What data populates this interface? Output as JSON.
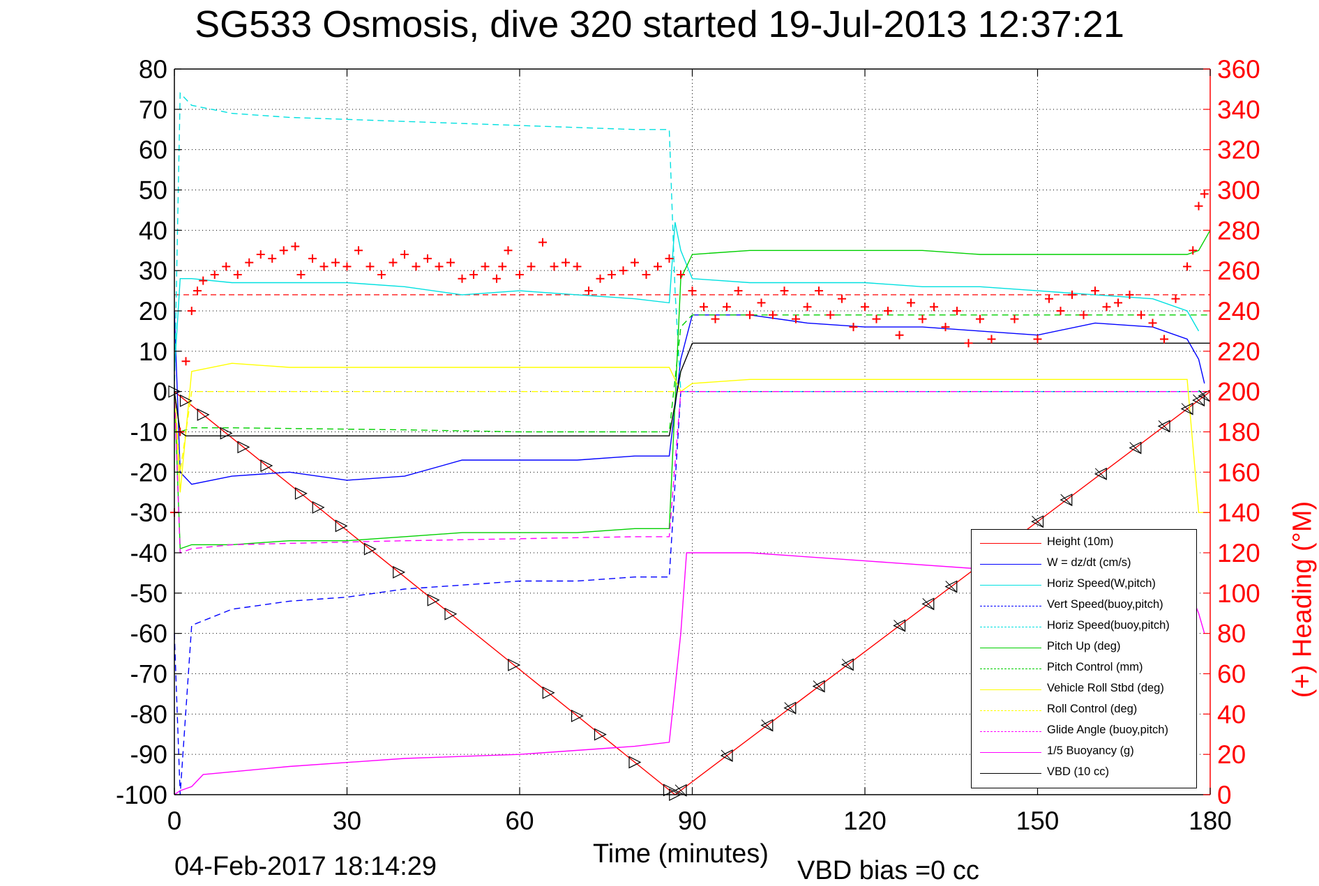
{
  "title": "SG533 Osmosis, dive 320 started 19-Jul-2013 12:37:21",
  "timestamp": "04-Feb-2017 18:14:29",
  "vbd_bias": "VBD bias =0 cc",
  "colors": {
    "height": "#ff0000",
    "w": "#0000ff",
    "horiz_w": "#00e0e0",
    "vert_buoy": "#0000ff",
    "horiz_buoy": "#00e0e0",
    "pitch_up": "#00d000",
    "pitch_control": "#00d000",
    "roll": "#ffff00",
    "roll_control": "#ffff00",
    "glide": "#ff00ff",
    "buoyancy": "#ff00ff",
    "vbd": "#000000",
    "heading": "#ff0000"
  },
  "chart_data": {
    "type": "line",
    "xlabel": "Time (minutes)",
    "ylabel": "",
    "y2label": "(+) Heading (°M)",
    "xlim": [
      0,
      180
    ],
    "ylim": [
      -100,
      80
    ],
    "y2lim": [
      0,
      360
    ],
    "xticks": [
      0,
      30,
      60,
      90,
      120,
      150,
      180
    ],
    "yticks": [
      -100,
      -90,
      -80,
      -70,
      -60,
      -50,
      -40,
      -30,
      -20,
      -10,
      0,
      10,
      20,
      30,
      40,
      50,
      60,
      70,
      80
    ],
    "y2ticks": [
      0,
      20,
      40,
      60,
      80,
      100,
      120,
      140,
      160,
      180,
      200,
      220,
      240,
      260,
      280,
      300,
      320,
      340,
      360
    ],
    "grid": true,
    "legend_position": "lower-right",
    "series": [
      {
        "name": "Height (10m)",
        "style": "solid",
        "color_key": "height",
        "x": [
          0,
          87,
          180
        ],
        "y": [
          0,
          -100,
          0
        ]
      },
      {
        "name": "W = dz/dt (cm/s)",
        "style": "solid",
        "color_key": "w",
        "x": [
          0,
          1,
          3,
          10,
          20,
          30,
          40,
          50,
          60,
          70,
          80,
          86,
          88,
          90,
          100,
          110,
          120,
          130,
          140,
          150,
          160,
          170,
          176,
          178,
          179
        ],
        "y": [
          20,
          -20,
          -23,
          -21,
          -20,
          -22,
          -21,
          -17,
          -17,
          -17,
          -16,
          -16,
          8,
          19,
          19,
          17,
          16,
          16,
          15,
          14,
          17,
          16,
          13,
          8,
          2
        ]
      },
      {
        "name": "Horiz Speed(W,pitch)",
        "style": "solid",
        "color_key": "horiz_w",
        "x": [
          0,
          1,
          3,
          10,
          20,
          30,
          40,
          50,
          60,
          70,
          80,
          86,
          87,
          88,
          90,
          100,
          110,
          120,
          130,
          140,
          150,
          160,
          170,
          176,
          178
        ],
        "y": [
          5,
          28,
          28,
          27,
          27,
          27,
          26,
          24,
          25,
          24,
          23,
          22,
          42,
          35,
          28,
          27,
          27,
          27,
          26,
          26,
          25,
          24,
          23,
          20,
          15
        ]
      },
      {
        "name": "Vert Speed(buoy,pitch)",
        "style": "dashed",
        "color_key": "vert_buoy",
        "x": [
          0,
          1,
          3,
          10,
          20,
          30,
          40,
          50,
          60,
          70,
          80,
          86,
          88,
          90,
          180
        ],
        "y": [
          -60,
          -100,
          -58,
          -54,
          -52,
          -51,
          -49,
          -48,
          -47,
          -47,
          -46,
          -46,
          0,
          0,
          0
        ]
      },
      {
        "name": "Horiz Speed(buoy,pitch)",
        "style": "dashed",
        "color_key": "horiz_buoy",
        "x": [
          0,
          1,
          3,
          10,
          20,
          40,
          60,
          80,
          86,
          87,
          88,
          90,
          180
        ],
        "y": [
          0,
          74,
          71,
          69,
          68,
          67,
          66,
          65,
          65,
          25,
          0,
          0,
          0
        ]
      },
      {
        "name": "Pitch Up (deg)",
        "style": "solid",
        "color_key": "pitch_up",
        "x": [
          0,
          1,
          3,
          10,
          20,
          30,
          40,
          50,
          60,
          70,
          80,
          86,
          88,
          90,
          100,
          110,
          120,
          130,
          140,
          150,
          160,
          170,
          176,
          178,
          180
        ],
        "y": [
          0,
          -39,
          -38,
          -38,
          -37,
          -37,
          -36,
          -35,
          -35,
          -35,
          -34,
          -34,
          28,
          34,
          35,
          35,
          35,
          35,
          34,
          34,
          34,
          34,
          34,
          35,
          40
        ]
      },
      {
        "name": "Pitch Control (mm)",
        "style": "dashed",
        "color_key": "pitch_control",
        "x": [
          0,
          1,
          3,
          10,
          40,
          60,
          86,
          88,
          90,
          120,
          150,
          178,
          180
        ],
        "y": [
          0,
          -10,
          -9,
          -9,
          -9.5,
          -10,
          -10,
          16,
          19,
          19,
          19,
          19,
          19
        ]
      },
      {
        "name": "Vehicle Roll Stbd (deg)",
        "style": "solid",
        "color_key": "roll",
        "x": [
          0,
          1,
          3,
          10,
          20,
          30,
          40,
          50,
          60,
          70,
          80,
          86,
          88,
          90,
          100,
          120,
          140,
          160,
          176,
          178,
          180
        ],
        "y": [
          0,
          -25,
          5,
          7,
          6,
          6,
          6,
          6,
          6,
          6,
          6,
          6,
          0,
          2,
          3,
          3,
          3,
          3,
          3,
          -30,
          -30
        ]
      },
      {
        "name": "Roll Control (deg)",
        "style": "dashed",
        "color_key": "roll_control",
        "x": [
          0,
          1,
          3,
          10,
          40,
          86,
          88,
          90,
          180
        ],
        "y": [
          0,
          -20,
          0,
          0,
          0,
          0,
          0,
          0,
          0
        ]
      },
      {
        "name": "Glide Angle (buoy,pitch)",
        "style": "dashed",
        "color_key": "glide",
        "x": [
          0,
          1,
          3,
          10,
          40,
          80,
          86,
          88,
          90,
          180
        ],
        "y": [
          0,
          -40,
          -39,
          -38,
          -37,
          -36,
          -36,
          0,
          0,
          0
        ]
      },
      {
        "name": "1/5 Buoyancy (g)",
        "style": "solid",
        "color_key": "buoyancy",
        "x": [
          0,
          1,
          3,
          5,
          20,
          40,
          60,
          80,
          86,
          88,
          89,
          100,
          120,
          140,
          160,
          176,
          178,
          179
        ],
        "y": [
          -100,
          -99,
          -98,
          -95,
          -93,
          -91,
          -90,
          -88,
          -87,
          -60,
          -40,
          -40,
          -42,
          -44,
          -46,
          -48,
          -55,
          -60
        ]
      },
      {
        "name": "VBD (10 cc)",
        "style": "solid",
        "color_key": "vbd",
        "x": [
          0,
          1,
          2,
          10,
          40,
          86,
          88,
          90,
          120,
          150,
          180
        ],
        "y": [
          0,
          -10,
          -11,
          -11,
          -11,
          -11,
          5,
          12,
          12,
          12,
          12
        ]
      }
    ],
    "heading_markers": {
      "name": "(+) Heading (°M)",
      "axis": "y2",
      "x": [
        0,
        1,
        2,
        3,
        4,
        5,
        7,
        9,
        11,
        13,
        15,
        17,
        19,
        21,
        22,
        24,
        26,
        28,
        30,
        32,
        34,
        36,
        38,
        40,
        42,
        44,
        46,
        48,
        50,
        52,
        54,
        56,
        57,
        58,
        60,
        62,
        64,
        66,
        68,
        70,
        72,
        74,
        76,
        78,
        80,
        82,
        84,
        86,
        88,
        90,
        92,
        94,
        96,
        98,
        100,
        102,
        104,
        106,
        108,
        110,
        112,
        114,
        116,
        118,
        120,
        122,
        124,
        126,
        128,
        130,
        132,
        134,
        136,
        138,
        140,
        142,
        146,
        150,
        152,
        154,
        156,
        158,
        160,
        162,
        164,
        166,
        168,
        170,
        172,
        174,
        176,
        177,
        178,
        179
      ],
      "y": [
        140,
        180,
        215,
        240,
        250,
        255,
        258,
        262,
        258,
        264,
        268,
        266,
        270,
        272,
        258,
        266,
        262,
        264,
        262,
        270,
        262,
        258,
        264,
        268,
        262,
        266,
        262,
        264,
        256,
        258,
        262,
        256,
        262,
        270,
        258,
        262,
        274,
        262,
        264,
        262,
        250,
        256,
        258,
        260,
        264,
        258,
        262,
        266,
        258,
        250,
        242,
        236,
        242,
        250,
        238,
        244,
        238,
        250,
        236,
        242,
        250,
        238,
        246,
        232,
        242,
        236,
        240,
        228,
        244,
        236,
        242,
        232,
        240,
        224,
        236,
        226,
        236,
        226,
        246,
        240,
        248,
        238,
        250,
        242,
        244,
        248,
        238,
        234,
        226,
        246,
        262,
        270,
        292,
        298
      ]
    },
    "reference_line": {
      "axis": "y2",
      "value": 248,
      "style": "dashed",
      "color_key": "height"
    },
    "depth_markers": {
      "down": [
        0,
        2,
        5,
        9,
        12,
        16,
        22,
        25,
        29,
        34,
        39,
        45,
        48,
        59,
        65,
        70,
        74,
        80,
        86,
        87
      ],
      "up": [
        88,
        96,
        103,
        107,
        112,
        117,
        126,
        131,
        135,
        150,
        155,
        161,
        167,
        172,
        176,
        178,
        179
      ]
    }
  }
}
